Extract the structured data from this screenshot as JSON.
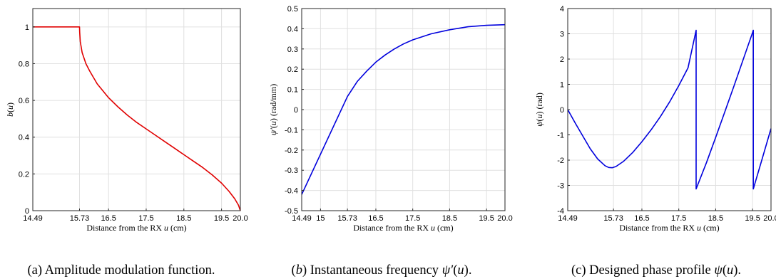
{
  "chart_data": [
    {
      "type": "line",
      "id": "a",
      "caption": "(a) Amplitude modulation function.",
      "xlabel": "Distance from the RX u (cm)",
      "ylabel": "b(u)",
      "xlim": [
        14.49,
        20.0
      ],
      "ylim": [
        0,
        1.1
      ],
      "xticks": [
        14.49,
        15.73,
        16.5,
        17.5,
        18.5,
        19.5,
        20.0
      ],
      "xtick_labels": [
        "14.49",
        "15.73",
        "16.5",
        "17.5",
        "18.5",
        "19.5",
        "20.0"
      ],
      "yticks": [
        0,
        0.2,
        0.4,
        0.6,
        0.8,
        1
      ],
      "ytick_labels": [
        "0",
        "0.2",
        "0.4",
        "0.6",
        "0.8",
        "1"
      ],
      "grid": true,
      "series": [
        {
          "color": "#e00000",
          "x": [
            14.49,
            15.0,
            15.5,
            15.73,
            15.735,
            15.75,
            15.8,
            15.9,
            16.0,
            16.2,
            16.5,
            16.75,
            17.0,
            17.25,
            17.5,
            17.75,
            18.0,
            18.25,
            18.5,
            18.75,
            19.0,
            19.25,
            19.5,
            19.7,
            19.85,
            19.95,
            20.0
          ],
          "y": [
            1.0,
            1.0,
            1.0,
            1.0,
            0.97,
            0.92,
            0.86,
            0.8,
            0.76,
            0.69,
            0.615,
            0.565,
            0.52,
            0.48,
            0.445,
            0.41,
            0.375,
            0.34,
            0.305,
            0.27,
            0.235,
            0.195,
            0.15,
            0.105,
            0.065,
            0.03,
            0.0
          ]
        }
      ]
    },
    {
      "type": "line",
      "id": "b",
      "caption": "(b) Instantaneous frequency ψ′(u).",
      "xlabel": "Distance from the RX u (cm)",
      "ylabel": "ψ′(u) (rad/mm)",
      "xlim": [
        14.49,
        20.0
      ],
      "ylim": [
        -0.5,
        0.5
      ],
      "xticks": [
        14.49,
        15.0,
        15.73,
        16.5,
        17.5,
        18.5,
        19.5,
        20.0
      ],
      "xtick_labels": [
        "14.49",
        "15",
        "15.73",
        "16.5",
        "17.5",
        "18.5",
        "19.5",
        "20.0"
      ],
      "yticks": [
        -0.5,
        -0.4,
        -0.3,
        -0.2,
        -0.1,
        0,
        0.1,
        0.2,
        0.3,
        0.4,
        0.5
      ],
      "ytick_labels": [
        "-0.5",
        "-0.4",
        "-0.3",
        "-0.2",
        "-0.1",
        "0",
        "0.1",
        "0.2",
        "0.3",
        "0.4",
        "0.5"
      ],
      "grid": true,
      "series": [
        {
          "color": "#0000dd",
          "x": [
            14.49,
            15.73,
            16.0,
            16.25,
            16.5,
            16.75,
            17.0,
            17.25,
            17.5,
            18.0,
            18.5,
            19.0,
            19.5,
            20.0
          ],
          "y": [
            -0.42,
            0.065,
            0.14,
            0.19,
            0.235,
            0.27,
            0.3,
            0.325,
            0.345,
            0.375,
            0.395,
            0.41,
            0.417,
            0.42
          ]
        }
      ]
    },
    {
      "type": "line",
      "id": "c",
      "caption": "(c) Designed phase profile ψ(u).",
      "xlabel": "Distance from the RX u (cm)",
      "ylabel": "ψ(u) (rad)",
      "xlim": [
        14.49,
        20.0
      ],
      "ylim": [
        -4,
        4
      ],
      "xticks": [
        14.49,
        15.73,
        16.5,
        17.5,
        18.5,
        19.5,
        20.0
      ],
      "xtick_labels": [
        "14.49",
        "15.73",
        "16.5",
        "17.5",
        "18.5",
        "19.5",
        "20.0"
      ],
      "yticks": [
        -4,
        -3,
        -2,
        -1,
        0,
        1,
        2,
        3,
        4
      ],
      "ytick_labels": [
        "-4",
        "-3",
        "-2",
        "-1",
        "0",
        "1",
        "2",
        "3",
        "4"
      ],
      "grid": true,
      "series": [
        {
          "color": "#0000dd",
          "x": [
            14.49,
            14.7,
            14.9,
            15.1,
            15.3,
            15.5,
            15.6,
            15.7,
            15.8,
            16.0,
            16.25,
            16.5,
            16.75,
            17.0,
            17.25,
            17.5,
            17.75,
            17.97,
            17.97,
            18.25,
            18.5,
            18.75,
            19.0,
            19.25,
            19.5,
            19.52,
            19.52,
            19.75,
            20.0
          ],
          "y": [
            0.0,
            -0.55,
            -1.05,
            -1.55,
            -1.95,
            -2.22,
            -2.29,
            -2.3,
            -2.25,
            -2.05,
            -1.7,
            -1.27,
            -0.8,
            -0.28,
            0.3,
            0.95,
            1.65,
            3.14,
            -3.14,
            -2.1,
            -1.1,
            -0.08,
            0.95,
            2.0,
            3.05,
            3.14,
            -3.14,
            -2.0,
            -0.75
          ]
        }
      ]
    }
  ]
}
